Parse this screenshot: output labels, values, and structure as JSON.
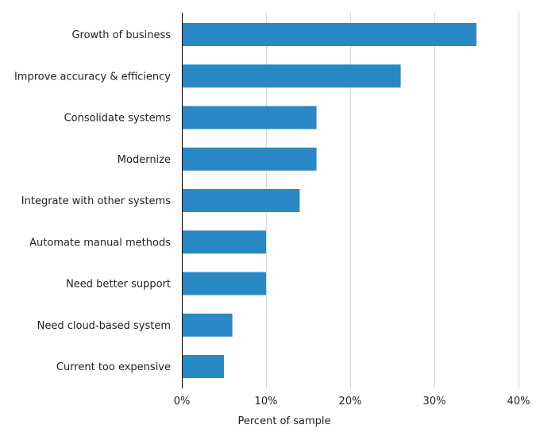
{
  "chart_data": {
    "type": "bar",
    "orientation": "horizontal",
    "categories": [
      "Growth of business",
      "Improve accuracy & efficiency",
      "Consolidate systems",
      "Modernize",
      "Integrate with other systems",
      "Automate manual methods",
      "Need better support",
      "Need cloud-based system",
      "Current too expensive"
    ],
    "values": [
      35,
      26,
      16,
      16,
      14,
      10,
      10,
      6,
      5
    ],
    "title": "",
    "xlabel": "Percent of sample",
    "ylabel": "",
    "xlim": [
      0,
      40
    ],
    "xticks": [
      0,
      10,
      20,
      30,
      40
    ],
    "xtick_labels": [
      "0%",
      "10%",
      "20%",
      "30%",
      "40%"
    ],
    "grid": "vertical",
    "bar_color": "#2989c4",
    "grid_color": "#d9d9d9"
  }
}
